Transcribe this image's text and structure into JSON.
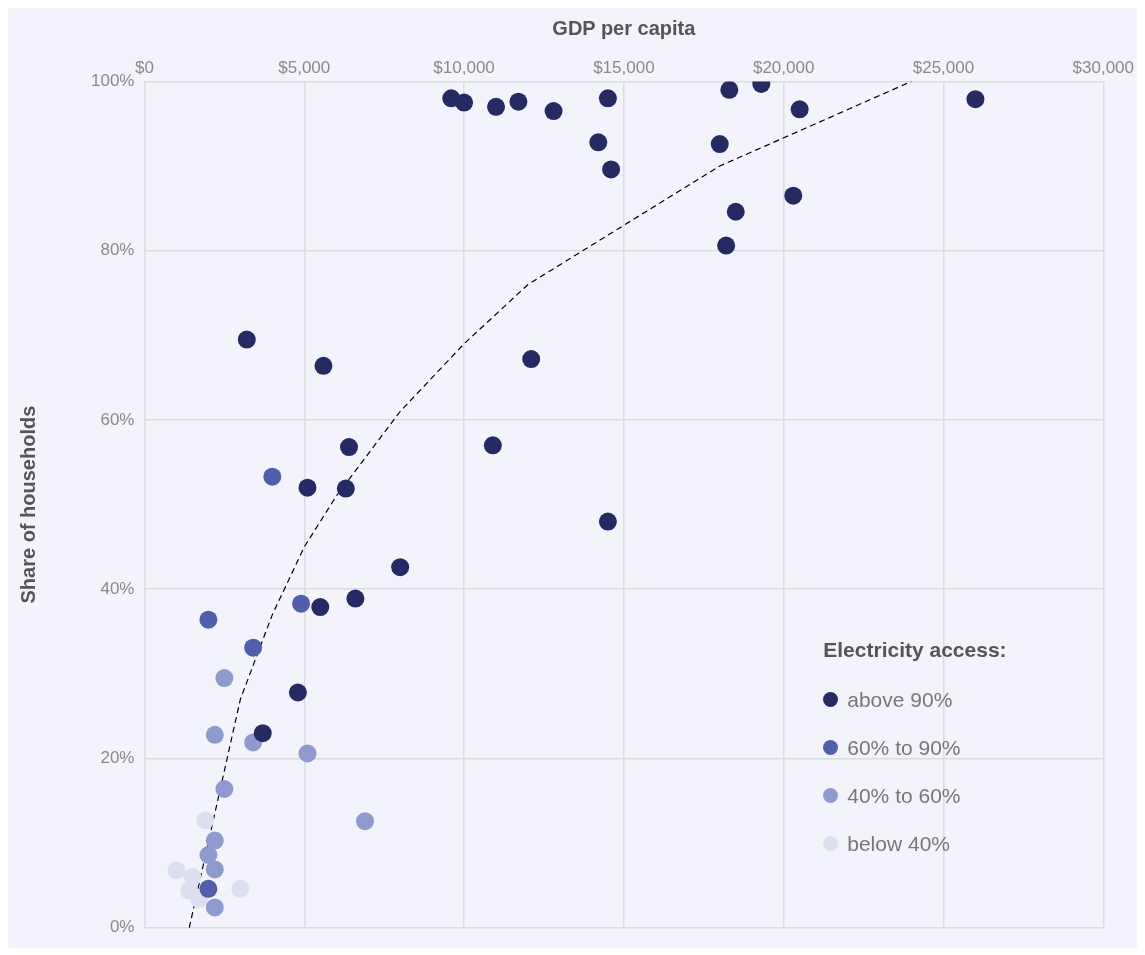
{
  "chart_data": {
    "type": "scatter",
    "xlabel": "GDP per capita",
    "ylabel": "Share of households",
    "legend_title": "Electricity access:",
    "xlim": [
      0,
      30000
    ],
    "ylim": [
      0,
      100
    ],
    "xticks": [
      {
        "value": 0,
        "label": "$0"
      },
      {
        "value": 5000,
        "label": "$5,000"
      },
      {
        "value": 10000,
        "label": "$10,000"
      },
      {
        "value": 15000,
        "label": "$15,000"
      },
      {
        "value": 20000,
        "label": "$20,000"
      },
      {
        "value": 25000,
        "label": "$25,000"
      },
      {
        "value": 30000,
        "label": "$30,000"
      }
    ],
    "yticks": [
      {
        "value": 0,
        "label": "0%"
      },
      {
        "value": 20,
        "label": "20%"
      },
      {
        "value": 40,
        "label": "40%"
      },
      {
        "value": 60,
        "label": "60%"
      },
      {
        "value": 80,
        "label": "80%"
      },
      {
        "value": 100,
        "label": "100%"
      }
    ],
    "grid": true,
    "legend": "bottom right",
    "marker": "circle",
    "series": [
      {
        "name": "above 90%",
        "color": "#262a63",
        "x": [
          9600,
          10000,
          11000,
          11700,
          12800,
          14500,
          14200,
          14600,
          18300,
          19300,
          18000,
          20500,
          18500,
          18200,
          20300,
          26000,
          3200,
          5600,
          12100,
          6400,
          10900,
          5100,
          6300,
          14500,
          8000,
          6600,
          5500,
          4800,
          3700
        ],
        "values": [
          98,
          97.5,
          97,
          97.6,
          96.5,
          98,
          92.8,
          89.6,
          99,
          99.7,
          92.6,
          96.7,
          84.6,
          80.6,
          86.5,
          97.9,
          69.5,
          66.4,
          67.2,
          56.8,
          57,
          52,
          51.9,
          48,
          42.6,
          38.9,
          37.9,
          27.8,
          23
        ]
      },
      {
        "name": "60% to 90%",
        "color": "#4f5fab",
        "x": [
          4000,
          4900,
          2000,
          3400,
          2000
        ],
        "values": [
          53.3,
          38.3,
          36.4,
          33.1,
          4.6
        ]
      },
      {
        "name": "40% to 60%",
        "color": "#8f9bcf",
        "x": [
          2500,
          2200,
          3400,
          5100,
          2500,
          6900,
          2200,
          2000,
          2200,
          2200
        ],
        "values": [
          29.5,
          22.8,
          21.9,
          20.6,
          16.4,
          12.6,
          10.3,
          8.6,
          6.9,
          2.4
        ]
      },
      {
        "name": "below 40%",
        "color": "#dcdfef",
        "x": [
          1900,
          1000,
          1500,
          1400,
          1700,
          3000
        ],
        "values": [
          12.7,
          6.8,
          6,
          4.4,
          3.4,
          4.6
        ]
      },
      {
        "type": "line",
        "color": "#000000",
        "line_style": "dashed",
        "marker": "none",
        "x": [
          1400,
          3000,
          4000,
          5000,
          6000,
          8000,
          10000,
          12000,
          15000,
          18000,
          21000,
          24000
        ],
        "values": [
          0,
          27,
          37,
          45,
          51,
          61,
          69,
          76,
          83,
          90,
          95,
          100
        ]
      }
    ]
  }
}
